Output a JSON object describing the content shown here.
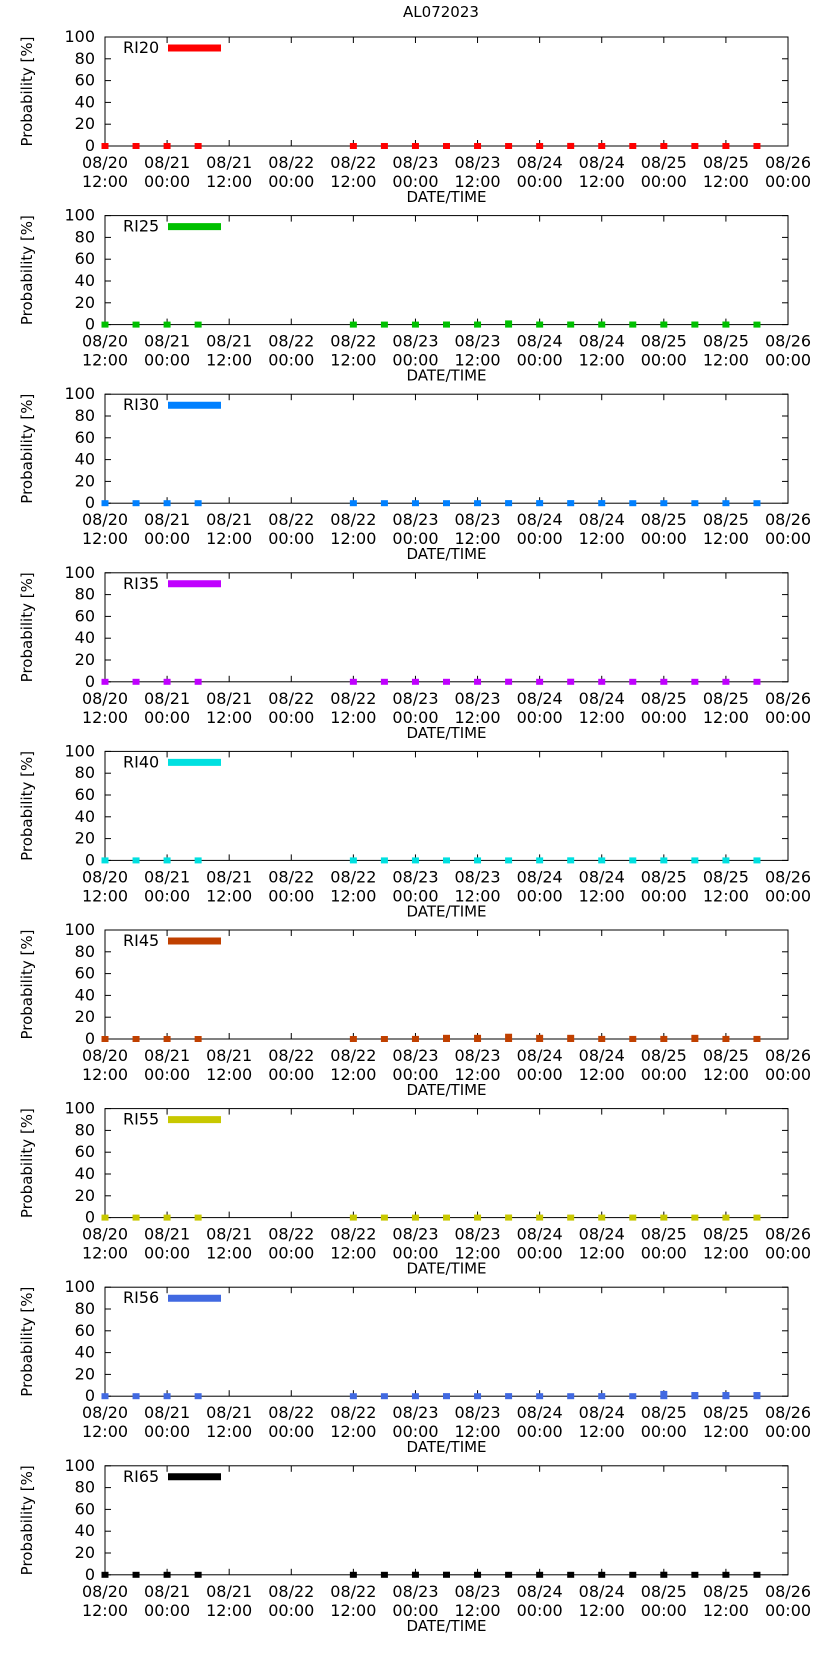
{
  "figure_title": "AL072023",
  "chart_data": [
    {
      "type": "scatter",
      "legend": "RI20",
      "color": "#ff0000",
      "xlabel": "DATE/TIME",
      "ylabel": "Probability [%]",
      "ylim": [
        0,
        100
      ],
      "yticks": [
        "0",
        "20",
        "40",
        "60",
        "80",
        "100"
      ],
      "xticks": [
        [
          "08/20",
          "12:00"
        ],
        [
          "08/21",
          "00:00"
        ],
        [
          "08/21",
          "12:00"
        ],
        [
          "08/22",
          "00:00"
        ],
        [
          "08/22",
          "12:00"
        ],
        [
          "08/23",
          "00:00"
        ],
        [
          "08/23",
          "12:00"
        ],
        [
          "08/24",
          "00:00"
        ],
        [
          "08/24",
          "12:00"
        ],
        [
          "08/25",
          "00:00"
        ],
        [
          "08/25",
          "12:00"
        ],
        [
          "08/26",
          "00:00"
        ]
      ],
      "xlim": [
        0,
        132
      ],
      "x": [
        0,
        6,
        12,
        18,
        48,
        54,
        60,
        66,
        72,
        78,
        84,
        90,
        96,
        102,
        108,
        114,
        120,
        126
      ],
      "values": [
        0,
        0,
        0,
        0,
        0,
        0,
        0,
        0,
        0,
        0,
        0,
        1,
        0,
        0,
        0,
        0,
        0,
        0
      ]
    },
    {
      "type": "scatter",
      "legend": "RI25",
      "color": "#00c000",
      "xlabel": "DATE/TIME",
      "ylabel": "Probability [%]",
      "ylim": [
        0,
        100
      ],
      "yticks": [
        "0",
        "20",
        "40",
        "60",
        "80",
        "100"
      ],
      "xticks": [
        [
          "08/20",
          "12:00"
        ],
        [
          "08/21",
          "00:00"
        ],
        [
          "08/21",
          "12:00"
        ],
        [
          "08/22",
          "00:00"
        ],
        [
          "08/22",
          "12:00"
        ],
        [
          "08/23",
          "00:00"
        ],
        [
          "08/23",
          "12:00"
        ],
        [
          "08/24",
          "00:00"
        ],
        [
          "08/24",
          "12:00"
        ],
        [
          "08/25",
          "00:00"
        ],
        [
          "08/25",
          "12:00"
        ],
        [
          "08/26",
          "00:00"
        ]
      ],
      "xlim": [
        0,
        132
      ],
      "x": [
        0,
        6,
        12,
        18,
        48,
        54,
        60,
        66,
        72,
        78,
        84,
        90,
        96,
        102,
        108,
        114,
        120,
        126
      ],
      "values": [
        0,
        0,
        0,
        0,
        0,
        0,
        0,
        1,
        1,
        2,
        1,
        1,
        1,
        1,
        1,
        1,
        1,
        0
      ]
    },
    {
      "type": "scatter",
      "legend": "RI30",
      "color": "#0080ff",
      "xlabel": "DATE/TIME",
      "ylabel": "Probability [%]",
      "ylim": [
        0,
        100
      ],
      "yticks": [
        "0",
        "20",
        "40",
        "60",
        "80",
        "100"
      ],
      "xticks": [
        [
          "08/20",
          "12:00"
        ],
        [
          "08/21",
          "00:00"
        ],
        [
          "08/21",
          "12:00"
        ],
        [
          "08/22",
          "00:00"
        ],
        [
          "08/22",
          "12:00"
        ],
        [
          "08/23",
          "00:00"
        ],
        [
          "08/23",
          "12:00"
        ],
        [
          "08/24",
          "00:00"
        ],
        [
          "08/24",
          "12:00"
        ],
        [
          "08/25",
          "00:00"
        ],
        [
          "08/25",
          "12:00"
        ],
        [
          "08/26",
          "00:00"
        ]
      ],
      "xlim": [
        0,
        132
      ],
      "x": [
        0,
        6,
        12,
        18,
        48,
        54,
        60,
        66,
        72,
        78,
        84,
        90,
        96,
        102,
        108,
        114,
        120,
        126
      ],
      "values": [
        0,
        0,
        0,
        0,
        0,
        0,
        0,
        0,
        0,
        1,
        1,
        1,
        1,
        0,
        0,
        0,
        0,
        0
      ]
    },
    {
      "type": "scatter",
      "legend": "RI35",
      "color": "#c000ff",
      "xlabel": "DATE/TIME",
      "ylabel": "Probability [%]",
      "ylim": [
        0,
        100
      ],
      "yticks": [
        "0",
        "20",
        "40",
        "60",
        "80",
        "100"
      ],
      "xticks": [
        [
          "08/20",
          "12:00"
        ],
        [
          "08/21",
          "00:00"
        ],
        [
          "08/21",
          "12:00"
        ],
        [
          "08/22",
          "00:00"
        ],
        [
          "08/22",
          "12:00"
        ],
        [
          "08/23",
          "00:00"
        ],
        [
          "08/23",
          "12:00"
        ],
        [
          "08/24",
          "00:00"
        ],
        [
          "08/24",
          "12:00"
        ],
        [
          "08/25",
          "00:00"
        ],
        [
          "08/25",
          "12:00"
        ],
        [
          "08/26",
          "00:00"
        ]
      ],
      "xlim": [
        0,
        132
      ],
      "x": [
        0,
        6,
        12,
        18,
        48,
        54,
        60,
        66,
        72,
        78,
        84,
        90,
        96,
        102,
        108,
        114,
        120,
        126
      ],
      "values": [
        0,
        0,
        0,
        0,
        0,
        0,
        0,
        0,
        0,
        1,
        0,
        1,
        0,
        0,
        0,
        0,
        0,
        0
      ]
    },
    {
      "type": "scatter",
      "legend": "RI40",
      "color": "#00e0e0",
      "xlabel": "DATE/TIME",
      "ylabel": "Probability [%]",
      "ylim": [
        0,
        100
      ],
      "yticks": [
        "0",
        "20",
        "40",
        "60",
        "80",
        "100"
      ],
      "xticks": [
        [
          "08/20",
          "12:00"
        ],
        [
          "08/21",
          "00:00"
        ],
        [
          "08/21",
          "12:00"
        ],
        [
          "08/22",
          "00:00"
        ],
        [
          "08/22",
          "12:00"
        ],
        [
          "08/23",
          "00:00"
        ],
        [
          "08/23",
          "12:00"
        ],
        [
          "08/24",
          "00:00"
        ],
        [
          "08/24",
          "12:00"
        ],
        [
          "08/25",
          "00:00"
        ],
        [
          "08/25",
          "12:00"
        ],
        [
          "08/26",
          "00:00"
        ]
      ],
      "xlim": [
        0,
        132
      ],
      "x": [
        0,
        6,
        12,
        18,
        48,
        54,
        60,
        66,
        72,
        78,
        84,
        90,
        96,
        102,
        108,
        114,
        120,
        126
      ],
      "values": [
        0,
        0,
        0,
        0,
        0,
        0,
        0,
        0,
        0,
        0,
        0,
        1,
        0,
        0,
        0,
        0,
        0,
        0
      ]
    },
    {
      "type": "scatter",
      "legend": "RI45",
      "color": "#c04000",
      "xlabel": "DATE/TIME",
      "ylabel": "Probability [%]",
      "ylim": [
        0,
        100
      ],
      "yticks": [
        "0",
        "20",
        "40",
        "60",
        "80",
        "100"
      ],
      "xticks": [
        [
          "08/20",
          "12:00"
        ],
        [
          "08/21",
          "00:00"
        ],
        [
          "08/21",
          "12:00"
        ],
        [
          "08/22",
          "00:00"
        ],
        [
          "08/22",
          "12:00"
        ],
        [
          "08/23",
          "00:00"
        ],
        [
          "08/23",
          "12:00"
        ],
        [
          "08/24",
          "00:00"
        ],
        [
          "08/24",
          "12:00"
        ],
        [
          "08/25",
          "00:00"
        ],
        [
          "08/25",
          "12:00"
        ],
        [
          "08/26",
          "00:00"
        ]
      ],
      "xlim": [
        0,
        132
      ],
      "x": [
        0,
        6,
        12,
        18,
        48,
        54,
        60,
        66,
        72,
        78,
        84,
        90,
        96,
        102,
        108,
        114,
        120,
        126
      ],
      "values": [
        0,
        0,
        0,
        0,
        0,
        0,
        1,
        2,
        2,
        3,
        2,
        2,
        1,
        1,
        1,
        2,
        1,
        1
      ]
    },
    {
      "type": "scatter",
      "legend": "RI55",
      "color": "#c8c800",
      "xlabel": "DATE/TIME",
      "ylabel": "Probability [%]",
      "ylim": [
        0,
        100
      ],
      "yticks": [
        "0",
        "20",
        "40",
        "60",
        "80",
        "100"
      ],
      "xticks": [
        [
          "08/20",
          "12:00"
        ],
        [
          "08/21",
          "00:00"
        ],
        [
          "08/21",
          "12:00"
        ],
        [
          "08/22",
          "00:00"
        ],
        [
          "08/22",
          "12:00"
        ],
        [
          "08/23",
          "00:00"
        ],
        [
          "08/23",
          "12:00"
        ],
        [
          "08/24",
          "00:00"
        ],
        [
          "08/24",
          "12:00"
        ],
        [
          "08/25",
          "00:00"
        ],
        [
          "08/25",
          "12:00"
        ],
        [
          "08/26",
          "00:00"
        ]
      ],
      "xlim": [
        0,
        132
      ],
      "x": [
        0,
        6,
        12,
        18,
        48,
        54,
        60,
        66,
        72,
        78,
        84,
        90,
        96,
        102,
        108,
        114,
        120,
        126
      ],
      "values": [
        0,
        0,
        0,
        0,
        0,
        0,
        0,
        0,
        0,
        1,
        0,
        0,
        0,
        0,
        0,
        0,
        0,
        0
      ]
    },
    {
      "type": "scatter",
      "legend": "RI56",
      "color": "#4169e1",
      "xlabel": "DATE/TIME",
      "ylabel": "Probability [%]",
      "ylim": [
        0,
        100
      ],
      "yticks": [
        "0",
        "20",
        "40",
        "60",
        "80",
        "100"
      ],
      "xticks": [
        [
          "08/20",
          "12:00"
        ],
        [
          "08/21",
          "00:00"
        ],
        [
          "08/21",
          "12:00"
        ],
        [
          "08/22",
          "00:00"
        ],
        [
          "08/22",
          "12:00"
        ],
        [
          "08/23",
          "00:00"
        ],
        [
          "08/23",
          "12:00"
        ],
        [
          "08/24",
          "00:00"
        ],
        [
          "08/24",
          "12:00"
        ],
        [
          "08/25",
          "00:00"
        ],
        [
          "08/25",
          "12:00"
        ],
        [
          "08/26",
          "00:00"
        ]
      ],
      "xlim": [
        0,
        132
      ],
      "x": [
        0,
        6,
        12,
        18,
        48,
        54,
        60,
        66,
        72,
        78,
        84,
        90,
        96,
        102,
        108,
        114,
        120,
        126
      ],
      "values": [
        0,
        0,
        0,
        0,
        0,
        0,
        0,
        1,
        0,
        1,
        0,
        0,
        1,
        0,
        3,
        2,
        2,
        2
      ]
    },
    {
      "type": "scatter",
      "legend": "RI65",
      "color": "#000000",
      "xlabel": "DATE/TIME",
      "ylabel": "Probability [%]",
      "ylim": [
        0,
        100
      ],
      "yticks": [
        "0",
        "20",
        "40",
        "60",
        "80",
        "100"
      ],
      "xticks": [
        [
          "08/20",
          "12:00"
        ],
        [
          "08/21",
          "00:00"
        ],
        [
          "08/21",
          "12:00"
        ],
        [
          "08/22",
          "00:00"
        ],
        [
          "08/22",
          "12:00"
        ],
        [
          "08/23",
          "00:00"
        ],
        [
          "08/23",
          "12:00"
        ],
        [
          "08/24",
          "00:00"
        ],
        [
          "08/24",
          "12:00"
        ],
        [
          "08/25",
          "00:00"
        ],
        [
          "08/25",
          "12:00"
        ],
        [
          "08/26",
          "00:00"
        ]
      ],
      "xlim": [
        0,
        132
      ],
      "x": [
        0,
        6,
        12,
        18,
        48,
        54,
        60,
        66,
        72,
        78,
        84,
        90,
        96,
        102,
        108,
        114,
        120,
        126
      ],
      "values": [
        0,
        0,
        0,
        0,
        0,
        0,
        1,
        1,
        0,
        0,
        0,
        0,
        0,
        0,
        1,
        0,
        0,
        0
      ]
    }
  ]
}
